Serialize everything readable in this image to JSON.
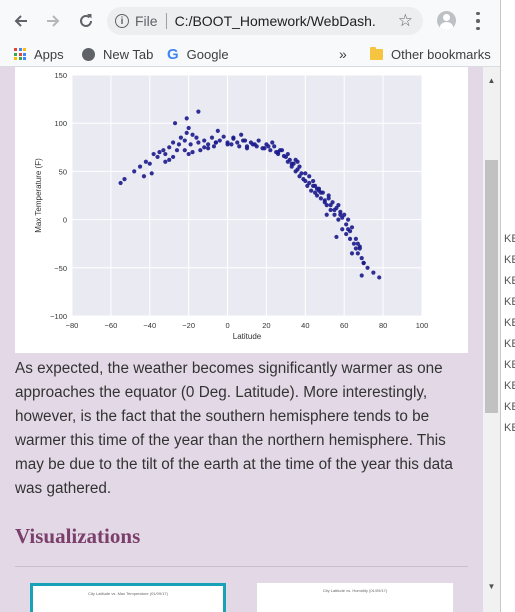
{
  "browser": {
    "address_prefix": "File",
    "url": "C:/BOOT_Homework/WebDash...",
    "bookmarks": [
      "Apps",
      "New Tab",
      "Google"
    ],
    "overflow": "»",
    "other_bookmarks": "Other bookmarks"
  },
  "chart_data": {
    "type": "scatter",
    "xlabel": "Latitude",
    "ylabel": "Max Temperature (F)",
    "xlim": [
      -80,
      100
    ],
    "ylim": [
      -100,
      150
    ],
    "xticks": [
      "−80",
      "−60",
      "−40",
      "−20",
      "0",
      "20",
      "40",
      "60",
      "80",
      "100"
    ],
    "yticks": [
      "150",
      "100",
      "50",
      "0",
      "−50",
      "−100"
    ],
    "grid": true,
    "point_color": "#1a1a8c",
    "x": [
      -55,
      -53,
      -48,
      -45,
      -42,
      -40,
      -38,
      -36,
      -35,
      -33,
      -32,
      -30,
      -28,
      -26,
      -25,
      -24,
      -22,
      -21,
      -20,
      -19,
      -18,
      -16,
      -15,
      -14,
      -12,
      -10,
      -8,
      -7,
      -6,
      -4,
      -2,
      0,
      2,
      3,
      5,
      6,
      8,
      10,
      12,
      13,
      15,
      16,
      18,
      20,
      22,
      24,
      25,
      26,
      28,
      29,
      30,
      31,
      32,
      33,
      34,
      35,
      36,
      37,
      38,
      39,
      40,
      41,
      42,
      43,
      44,
      45,
      46,
      47,
      48,
      49,
      50,
      51,
      52,
      53,
      54,
      55,
      56,
      57,
      58,
      59,
      60,
      61,
      62,
      63,
      64,
      65,
      66,
      67,
      68,
      69,
      70,
      72,
      75,
      78,
      -39,
      -32,
      -28,
      -22,
      -18,
      -12,
      -6,
      3,
      9,
      14,
      21,
      27,
      31,
      35,
      37,
      42,
      44,
      46,
      48,
      50,
      52,
      55,
      57,
      59,
      61,
      63,
      66,
      68,
      70,
      -43,
      -30,
      -20,
      -10,
      0,
      10,
      19,
      26,
      33,
      40,
      47,
      53,
      58,
      62,
      67,
      -27,
      -21,
      -15,
      -5,
      7,
      23,
      36,
      45,
      51,
      56,
      64,
      69
    ],
    "y": [
      38,
      42,
      50,
      55,
      60,
      58,
      68,
      65,
      70,
      72,
      68,
      75,
      80,
      72,
      78,
      85,
      82,
      90,
      95,
      78,
      88,
      85,
      80,
      72,
      82,
      78,
      85,
      76,
      80,
      82,
      86,
      80,
      78,
      84,
      80,
      76,
      82,
      74,
      80,
      78,
      76,
      82,
      74,
      78,
      72,
      76,
      70,
      68,
      72,
      66,
      65,
      60,
      62,
      55,
      58,
      50,
      52,
      45,
      48,
      42,
      40,
      35,
      38,
      30,
      35,
      28,
      25,
      30,
      22,
      28,
      20,
      15,
      25,
      10,
      18,
      5,
      12,
      0,
      8,
      -10,
      5,
      -15,
      0,
      -20,
      -8,
      -25,
      -30,
      -35,
      -28,
      -40,
      -45,
      -50,
      -55,
      -60,
      48,
      60,
      65,
      72,
      70,
      75,
      80,
      85,
      82,
      78,
      76,
      72,
      68,
      62,
      55,
      45,
      40,
      32,
      28,
      18,
      22,
      10,
      15,
      2,
      -5,
      -12,
      -20,
      -30,
      -45,
      45,
      62,
      68,
      74,
      78,
      76,
      74,
      70,
      58,
      48,
      32,
      15,
      5,
      -10,
      -25,
      100,
      105,
      112,
      92,
      88,
      80,
      60,
      35,
      5,
      -18,
      -35,
      -58
    ]
  },
  "description": "As expected, the weather becomes significantly warmer as one approaches the equator (0 Deg. Latitude). More interestingly, however, is the fact that the southern hemisphere tends to be warmer this time of the year than the northern hemisphere. This may be due to the tilt of the earth at the time of the year this data was gathered.",
  "visualizations": {
    "title": "Visualizations",
    "thumbs": [
      "City Latitude vs. Max Temperature (01/09/17)",
      "City Latitude vs. Humidity (01/09/17)"
    ]
  },
  "right_panel": {
    "fragments": [
      "KE",
      "KE",
      "KE",
      "KE",
      "KE",
      "KE",
      "KE",
      "KE",
      "KE",
      "KE"
    ]
  }
}
